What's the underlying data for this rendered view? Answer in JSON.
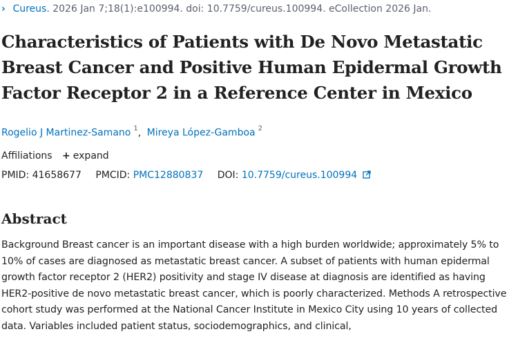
{
  "citation": {
    "journal": "Cureus.",
    "details": "2026 Jan 7;18(1):e100994. doi: 10.7759/cureus.100994. eCollection 2026 Jan."
  },
  "title": "Characteristics of Patients with De Novo Metastatic Breast Cancer and Positive Human Epidermal Growth Factor Receptor 2 in a Reference Center in Mexico",
  "authors": [
    {
      "name": "Rogelio J Martinez-Samano",
      "affiliation": "1"
    },
    {
      "name": "Mireya López-Gamboa",
      "affiliation": "2"
    }
  ],
  "affiliations": {
    "label": "Affiliations",
    "expand_label": "expand"
  },
  "identifiers": {
    "pmid_label": "PMID:",
    "pmid": "41658677",
    "pmcid_label": "PMCID:",
    "pmcid": "PMC12880837",
    "doi_label": "DOI:",
    "doi": "10.7759/cureus.100994"
  },
  "abstract": {
    "heading": "Abstract",
    "text": "Background Breast cancer is an important disease with a high burden worldwide; approximately 5% to 10% of cases are diagnosed as metastatic breast cancer. A subset of patients with human epidermal growth factor receptor 2 (HER2) positivity and stage IV disease at diagnosis are identified as having HER2-positive de novo metastatic breast cancer, which is poorly characterized. Methods A retrospective cohort study was performed at the National Cancer Institute in Mexico City using 10 years of collected data. Variables included patient status, sociodemographics, and clinical,"
  },
  "colors": {
    "link": "#0071bc",
    "text": "#212121",
    "muted": "#5b616b"
  }
}
